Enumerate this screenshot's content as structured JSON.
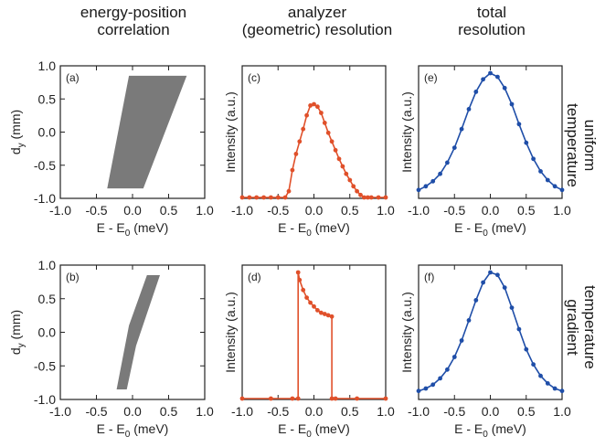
{
  "column_titles": {
    "energy_position": "energy-position\ncorrelation",
    "analyzer": "analyzer\n(geometric) resolution",
    "total": "total\nresolution"
  },
  "row_titles": {
    "uniform": "uniform\ntemperature",
    "gradient": "temperature\ngradient"
  },
  "colors": {
    "region": "#7a7a7a",
    "analyzer": "#e0502a",
    "total": "#1f4ea8"
  },
  "chart_data": [
    {
      "panel": "(a)",
      "type": "area",
      "xlabel": "E - E0 (meV)",
      "ylabel": "dy (mm)",
      "xlim": [
        -1.0,
        1.0
      ],
      "ylim": [
        -1.0,
        1.0
      ],
      "xticks": [
        "-1.0",
        "-0.5",
        "0.0",
        "0.5",
        "1.0"
      ],
      "yticks": [
        "1.0",
        "0.5",
        "0.0",
        "-0.5",
        "-1.0"
      ],
      "polygon": [
        [
          -0.35,
          -0.85
        ],
        [
          0.15,
          -0.85
        ],
        [
          0.75,
          0.85
        ],
        [
          -0.05,
          0.85
        ]
      ]
    },
    {
      "panel": "(c)",
      "type": "line",
      "xlabel": "E - E0 (meV)",
      "ylabel": "Intensity (a.u.)",
      "xlim": [
        -1.0,
        1.0
      ],
      "xticks": [
        "-1.0",
        "-0.5",
        "0.0",
        "0.5",
        "1.0"
      ],
      "x": [
        -1.0,
        -0.9,
        -0.8,
        -0.7,
        -0.6,
        -0.5,
        -0.4,
        -0.35,
        -0.3,
        -0.25,
        -0.2,
        -0.15,
        -0.1,
        -0.05,
        0.0,
        0.05,
        0.1,
        0.15,
        0.2,
        0.25,
        0.3,
        0.35,
        0.4,
        0.45,
        0.5,
        0.55,
        0.6,
        0.65,
        0.7,
        0.75,
        0.8,
        0.9,
        1.0
      ],
      "y": [
        0,
        0,
        0,
        0,
        0,
        0,
        0,
        0.05,
        0.22,
        0.35,
        0.45,
        0.55,
        0.66,
        0.74,
        0.75,
        0.73,
        0.68,
        0.6,
        0.52,
        0.45,
        0.38,
        0.31,
        0.25,
        0.19,
        0.14,
        0.09,
        0.05,
        0.02,
        0.0,
        0,
        0,
        0,
        0
      ]
    },
    {
      "panel": "(e)",
      "type": "line",
      "xlabel": "E - E0 (meV)",
      "ylabel": "Intensity (a.u.)",
      "xlim": [
        -1.0,
        1.0
      ],
      "xticks": [
        "-1.0",
        "-0.5",
        "0.0",
        "0.5",
        "1.0"
      ],
      "x": [
        -1.0,
        -0.9,
        -0.8,
        -0.7,
        -0.6,
        -0.5,
        -0.4,
        -0.3,
        -0.2,
        -0.1,
        0.0,
        0.1,
        0.2,
        0.3,
        0.4,
        0.5,
        0.6,
        0.7,
        0.8,
        0.9,
        1.0
      ],
      "y": [
        0.06,
        0.09,
        0.13,
        0.19,
        0.28,
        0.4,
        0.55,
        0.71,
        0.85,
        0.95,
        1.0,
        0.97,
        0.88,
        0.75,
        0.59,
        0.44,
        0.31,
        0.21,
        0.14,
        0.09,
        0.06
      ]
    },
    {
      "panel": "(b)",
      "type": "area",
      "xlabel": "E - E0 (meV)",
      "ylabel": "dy (mm)",
      "xlim": [
        -1.0,
        1.0
      ],
      "ylim": [
        -1.0,
        1.0
      ],
      "xticks": [
        "-1.0",
        "-0.5",
        "0.0",
        "0.5",
        "1.0"
      ],
      "yticks": [
        "1.0",
        "0.5",
        "0.0",
        "-0.5",
        "-1.0"
      ],
      "polygon": [
        [
          -0.22,
          -0.85
        ],
        [
          -0.08,
          -0.85
        ],
        [
          0.05,
          -0.2
        ],
        [
          0.38,
          0.85
        ],
        [
          0.2,
          0.85
        ],
        [
          -0.05,
          0.1
        ]
      ]
    },
    {
      "panel": "(d)",
      "type": "line",
      "xlabel": "E - E0 (meV)",
      "ylabel": "Intensity (a.u.)",
      "xlim": [
        -1.0,
        1.0
      ],
      "xticks": [
        "-1.0",
        "-0.5",
        "0.0",
        "0.5",
        "1.0"
      ],
      "x": [
        -1.0,
        -0.6,
        -0.3,
        -0.22,
        -0.22,
        -0.2,
        -0.15,
        -0.1,
        -0.05,
        0.0,
        0.05,
        0.1,
        0.15,
        0.2,
        0.25,
        0.25,
        0.3,
        0.6,
        1.0
      ],
      "y": [
        0,
        0,
        0,
        0,
        1.0,
        0.94,
        0.86,
        0.8,
        0.76,
        0.73,
        0.7,
        0.68,
        0.67,
        0.66,
        0.65,
        0,
        0,
        0,
        0
      ]
    },
    {
      "panel": "(f)",
      "type": "line",
      "xlabel": "E - E0 (meV)",
      "ylabel": "Intensity (a.u.)",
      "xlim": [
        -1.0,
        1.0
      ],
      "xticks": [
        "-1.0",
        "-0.5",
        "0.0",
        "0.5",
        "1.0"
      ],
      "x": [
        -1.0,
        -0.9,
        -0.8,
        -0.7,
        -0.6,
        -0.5,
        -0.4,
        -0.3,
        -0.2,
        -0.1,
        0.0,
        0.1,
        0.2,
        0.3,
        0.4,
        0.5,
        0.6,
        0.7,
        0.8,
        0.9,
        1.0
      ],
      "y": [
        0.06,
        0.08,
        0.11,
        0.16,
        0.23,
        0.33,
        0.46,
        0.62,
        0.78,
        0.92,
        1.0,
        0.98,
        0.88,
        0.72,
        0.55,
        0.39,
        0.27,
        0.18,
        0.12,
        0.08,
        0.06
      ]
    }
  ]
}
